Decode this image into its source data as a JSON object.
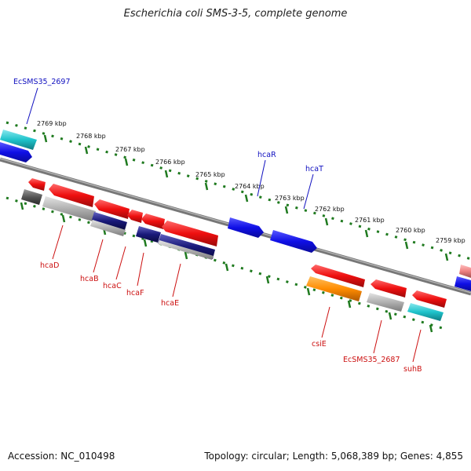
{
  "title": "Escherichia coli SMS-3-5, complete genome",
  "footer": {
    "accession": "Accession: NC_010498",
    "summary": "Topology: circular; Length: 5,068,389 bp; Genes: 4,855"
  },
  "ruler_labels": [
    "2769 kbp",
    "2768 kbp",
    "2767 kbp",
    "2766 kbp",
    "2765 kbp",
    "2764 kbp",
    "2763 kbp",
    "2762 kbp",
    "2761 kbp",
    "2760 kbp",
    "2759 kbp"
  ],
  "genes_top": {
    "EcSMS35_2697": "EcSMS35_2697",
    "hcaR": "hcaR",
    "hcaT": "hcaT"
  },
  "genes_bottom": {
    "hcaD": "hcaD",
    "hcaB": "hcaB",
    "hcaC": "hcaC",
    "hcaF": "hcaF",
    "hcaE": "hcaE",
    "csiE": "csiE",
    "EcSMS35_2687": "EcSMS35_2687",
    "suhB": "suhB"
  },
  "colors": {
    "backbone": "#7a7a7a",
    "ruler": "#1f7a1f",
    "forward": "#1414ee",
    "reverse": "#ee1414",
    "cyan": "#20c0c8",
    "orange": "#ff8c00",
    "gray": "#aaaaaa",
    "navy": "#1a1a7a",
    "label_blue": "#1010c0",
    "label_red": "#cc1010"
  }
}
